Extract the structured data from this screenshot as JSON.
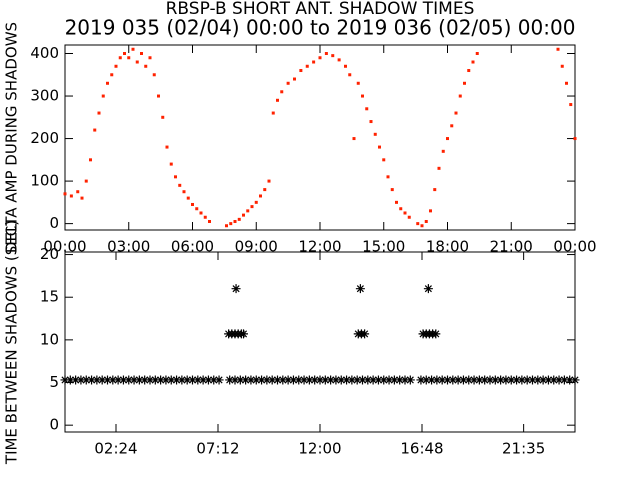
{
  "chart_data": [
    {
      "type": "scatter",
      "title": "RBSP-B SHORT ANT. SHADOW TIMES",
      "subtitle": "2019 035 (02/04) 00:00 to 2019 036 (02/05) 00:00",
      "y_label": "DELTA AMP DURING SHADOWS",
      "marker": "dot",
      "xlim": [
        0,
        24
      ],
      "ylim": [
        -15,
        420
      ],
      "xticks": [
        {
          "value": 0,
          "label": "00:00"
        },
        {
          "value": 3,
          "label": "03:00"
        },
        {
          "value": 6,
          "label": "06:00"
        },
        {
          "value": 9,
          "label": "09:00"
        },
        {
          "value": 12,
          "label": "12:00"
        },
        {
          "value": 15,
          "label": "15:00"
        },
        {
          "value": 18,
          "label": "18:00"
        },
        {
          "value": 21,
          "label": "21:00"
        },
        {
          "value": 24,
          "label": "00:00"
        }
      ],
      "yticks": [
        0,
        100,
        200,
        300,
        400
      ],
      "series": [
        {
          "color": "#ff2200",
          "x": [
            0,
            0.3,
            0.6,
            0.8,
            1.0,
            1.2,
            1.4,
            1.6,
            1.8,
            2.0,
            2.2,
            2.4,
            2.6,
            2.8,
            3.0,
            3.2,
            3.4,
            3.6,
            3.8,
            4.0,
            4.2,
            4.4,
            4.6,
            4.8,
            5.0,
            5.2,
            5.4,
            5.6,
            5.8,
            6.0,
            6.2,
            6.4,
            6.6,
            6.8,
            7.6,
            7.8,
            8.0,
            8.2,
            8.4,
            8.6,
            8.8,
            9.0,
            9.2,
            9.4,
            9.6,
            9.8,
            10.0,
            10.2,
            10.5,
            10.8,
            11.1,
            11.4,
            11.7,
            12.0,
            12.3,
            12.6,
            12.9,
            13.2,
            13.4,
            13.6,
            13.8,
            14.0,
            14.2,
            14.4,
            14.6,
            14.8,
            15.0,
            15.2,
            15.4,
            15.6,
            15.8,
            16.0,
            16.2,
            16.6,
            16.8,
            17.0,
            17.2,
            17.4,
            17.6,
            17.8,
            18.0,
            18.2,
            18.4,
            18.6,
            18.8,
            19.0,
            19.2,
            19.4,
            23.2,
            23.4,
            23.6,
            23.8,
            24.0
          ],
          "values": [
            70,
            65,
            75,
            60,
            100,
            150,
            220,
            260,
            300,
            330,
            350,
            370,
            390,
            400,
            390,
            410,
            380,
            400,
            370,
            390,
            350,
            300,
            250,
            180,
            140,
            110,
            90,
            75,
            60,
            45,
            35,
            25,
            15,
            5,
            -5,
            0,
            5,
            10,
            20,
            30,
            40,
            50,
            65,
            80,
            100,
            260,
            290,
            310,
            330,
            340,
            360,
            370,
            380,
            390,
            400,
            395,
            385,
            370,
            350,
            200,
            330,
            300,
            270,
            240,
            210,
            180,
            150,
            110,
            80,
            50,
            35,
            25,
            15,
            0,
            -5,
            5,
            30,
            80,
            130,
            170,
            200,
            230,
            260,
            300,
            330,
            360,
            380,
            400,
            410,
            370,
            330,
            280,
            200
          ]
        }
      ]
    },
    {
      "type": "scatter",
      "y_label": "TIME BETWEEN SHADOWS (SEC)",
      "marker": "star",
      "xlim": [
        0,
        24
      ],
      "ylim": [
        -0.8,
        20.3
      ],
      "xticks": [
        {
          "value": 2.4,
          "label": "02:24"
        },
        {
          "value": 7.2,
          "label": "07:12"
        },
        {
          "value": 12,
          "label": "12:00"
        },
        {
          "value": 16.8,
          "label": "16:48"
        },
        {
          "value": 21.583,
          "label": "21:35"
        }
      ],
      "yticks": [
        0,
        5,
        10,
        15,
        20
      ],
      "series": [
        {
          "color": "#000000",
          "x": [
            0,
            0.25,
            0.5,
            0.75,
            1,
            1.25,
            1.5,
            1.75,
            2,
            2.25,
            2.5,
            2.75,
            3,
            3.25,
            3.5,
            3.75,
            4,
            4.25,
            4.5,
            4.75,
            5,
            5.25,
            5.5,
            5.75,
            6,
            6.25,
            6.5,
            6.75,
            7,
            7.25,
            7.75,
            8,
            8.25,
            8.5,
            8.75,
            9,
            9.25,
            9.5,
            9.75,
            10,
            10.25,
            10.5,
            10.75,
            11,
            11.25,
            11.5,
            11.75,
            12,
            12.25,
            12.5,
            12.75,
            13,
            13.25,
            13.5,
            13.75,
            14,
            14.25,
            14.5,
            14.75,
            15,
            15.25,
            15.5,
            15.75,
            16,
            16.25,
            16.75,
            17,
            17.25,
            17.5,
            17.75,
            18,
            18.25,
            18.5,
            18.75,
            19,
            19.25,
            19.5,
            19.75,
            20,
            20.25,
            20.5,
            20.75,
            21,
            21.25,
            21.5,
            21.75,
            22,
            22.25,
            22.5,
            22.75,
            23,
            23.25,
            23.5,
            23.75,
            24,
            7.7,
            7.85,
            8.0,
            8.15,
            8.3,
            8.4,
            13.8,
            13.95,
            14.1,
            16.85,
            17.0,
            17.15,
            17.3,
            17.45,
            8.05,
            13.9,
            17.1
          ],
          "values": [
            5.3,
            5.3,
            5.3,
            5.3,
            5.3,
            5.3,
            5.3,
            5.3,
            5.3,
            5.3,
            5.3,
            5.3,
            5.3,
            5.3,
            5.3,
            5.3,
            5.3,
            5.3,
            5.3,
            5.3,
            5.3,
            5.3,
            5.3,
            5.3,
            5.3,
            5.3,
            5.3,
            5.3,
            5.3,
            5.3,
            5.3,
            5.3,
            5.3,
            5.3,
            5.3,
            5.3,
            5.3,
            5.3,
            5.3,
            5.3,
            5.3,
            5.3,
            5.3,
            5.3,
            5.3,
            5.3,
            5.3,
            5.3,
            5.3,
            5.3,
            5.3,
            5.3,
            5.3,
            5.3,
            5.3,
            5.3,
            5.3,
            5.3,
            5.3,
            5.3,
            5.3,
            5.3,
            5.3,
            5.3,
            5.3,
            5.3,
            5.3,
            5.3,
            5.3,
            5.3,
            5.3,
            5.3,
            5.3,
            5.3,
            5.3,
            5.3,
            5.3,
            5.3,
            5.3,
            5.3,
            5.3,
            5.3,
            5.3,
            5.3,
            5.3,
            5.3,
            5.3,
            5.3,
            5.3,
            5.3,
            5.3,
            5.3,
            5.3,
            5.3,
            5.3,
            10.7,
            10.7,
            10.7,
            10.7,
            10.7,
            10.7,
            10.7,
            10.7,
            10.7,
            10.7,
            10.7,
            10.7,
            10.7,
            10.7,
            16,
            16,
            16
          ]
        }
      ]
    }
  ]
}
